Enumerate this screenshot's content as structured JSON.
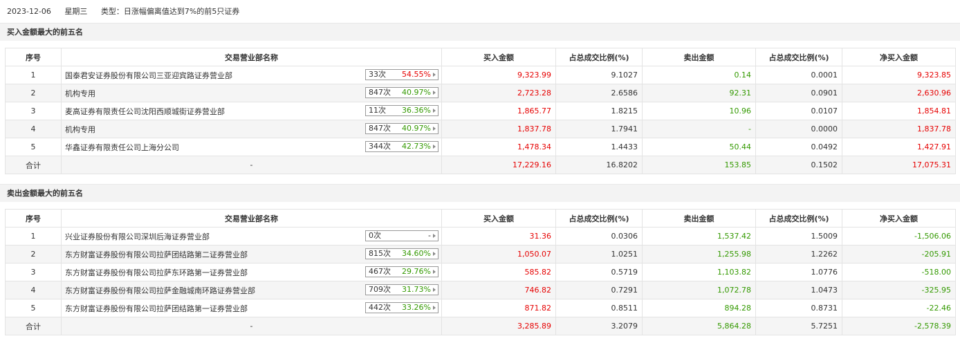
{
  "header": {
    "date": "2023-12-06",
    "weekday": "星期三",
    "type": "类型：日涨幅偏离值达到7%的前5只证券"
  },
  "columns": [
    "序号",
    "交易营业部名称",
    "买入金额",
    "占总成交比例(%)",
    "卖出金额",
    "占总成交比例(%)",
    "净买入金额"
  ],
  "colors": {
    "up": "#e60000",
    "down": "#339900"
  },
  "buy": {
    "title": "买入金额最大的前五名",
    "rows": [
      {
        "no": "1",
        "name": "国泰君安证券股份有限公司三亚迎宾路证券营业部",
        "count": "33次",
        "rate": "54.55%",
        "rate_up": true,
        "buy": "9,323.99",
        "buy_pct": "9.1027",
        "sell": "0.14",
        "sell_pct": "0.0001",
        "net": "9,323.85",
        "net_up": true
      },
      {
        "no": "2",
        "name": "机构专用",
        "count": "847次",
        "rate": "40.97%",
        "rate_up": false,
        "buy": "2,723.28",
        "buy_pct": "2.6586",
        "sell": "92.31",
        "sell_pct": "0.0901",
        "net": "2,630.96",
        "net_up": true
      },
      {
        "no": "3",
        "name": "麦高证券有限责任公司沈阳西顺城街证券营业部",
        "count": "11次",
        "rate": "36.36%",
        "rate_up": false,
        "buy": "1,865.77",
        "buy_pct": "1.8215",
        "sell": "10.96",
        "sell_pct": "0.0107",
        "net": "1,854.81",
        "net_up": true
      },
      {
        "no": "4",
        "name": "机构专用",
        "count": "847次",
        "rate": "40.97%",
        "rate_up": false,
        "buy": "1,837.78",
        "buy_pct": "1.7941",
        "sell": "-",
        "sell_pct": "0.0000",
        "net": "1,837.78",
        "net_up": true
      },
      {
        "no": "5",
        "name": "华鑫证券有限责任公司上海分公司",
        "count": "344次",
        "rate": "42.73%",
        "rate_up": false,
        "buy": "1,478.34",
        "buy_pct": "1.4433",
        "sell": "50.44",
        "sell_pct": "0.0492",
        "net": "1,427.91",
        "net_up": true
      }
    ],
    "total": {
      "label": "合计",
      "name": "-",
      "buy": "17,229.16",
      "buy_pct": "16.8202",
      "sell": "153.85",
      "sell_pct": "0.1502",
      "net": "17,075.31",
      "net_up": true
    }
  },
  "sell": {
    "title": "卖出金额最大的前五名",
    "rows": [
      {
        "no": "1",
        "name": "兴业证券股份有限公司深圳后海证券营业部",
        "count": "0次",
        "rate": "-",
        "rate_up": null,
        "buy": "31.36",
        "buy_pct": "0.0306",
        "sell": "1,537.42",
        "sell_pct": "1.5009",
        "net": "-1,506.06",
        "net_up": false
      },
      {
        "no": "2",
        "name": "东方财富证券股份有限公司拉萨团结路第二证券营业部",
        "count": "815次",
        "rate": "34.60%",
        "rate_up": false,
        "buy": "1,050.07",
        "buy_pct": "1.0251",
        "sell": "1,255.98",
        "sell_pct": "1.2262",
        "net": "-205.91",
        "net_up": false
      },
      {
        "no": "3",
        "name": "东方财富证券股份有限公司拉萨东环路第一证券营业部",
        "count": "467次",
        "rate": "29.76%",
        "rate_up": false,
        "buy": "585.82",
        "buy_pct": "0.5719",
        "sell": "1,103.82",
        "sell_pct": "1.0776",
        "net": "-518.00",
        "net_up": false
      },
      {
        "no": "4",
        "name": "东方财富证券股份有限公司拉萨金融城南环路证券营业部",
        "count": "709次",
        "rate": "31.73%",
        "rate_up": false,
        "buy": "746.82",
        "buy_pct": "0.7291",
        "sell": "1,072.78",
        "sell_pct": "1.0473",
        "net": "-325.95",
        "net_up": false
      },
      {
        "no": "5",
        "name": "东方财富证券股份有限公司拉萨团结路第一证券营业部",
        "count": "442次",
        "rate": "33.26%",
        "rate_up": false,
        "buy": "871.82",
        "buy_pct": "0.8511",
        "sell": "894.28",
        "sell_pct": "0.8731",
        "net": "-22.46",
        "net_up": false
      }
    ],
    "total": {
      "label": "合计",
      "name": "-",
      "buy": "3,285.89",
      "buy_pct": "3.2079",
      "sell": "5,864.28",
      "sell_pct": "5.7251",
      "net": "-2,578.39",
      "net_up": false
    }
  }
}
